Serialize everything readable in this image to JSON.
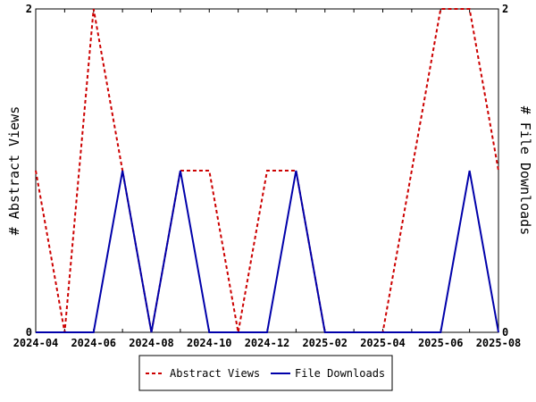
{
  "chart_data": {
    "type": "line",
    "x": [
      "2024-04",
      "2024-05",
      "2024-06",
      "2024-07",
      "2024-08",
      "2024-09",
      "2024-10",
      "2024-11",
      "2024-12",
      "2025-01",
      "2025-02",
      "2025-03",
      "2025-04",
      "2025-05",
      "2025-06",
      "2025-07",
      "2025-08"
    ],
    "x_tick_labels": [
      "2024-04",
      "2024-06",
      "2024-08",
      "2024-10",
      "2024-12",
      "2025-02",
      "2025-04",
      "2025-06",
      "2025-08"
    ],
    "series": [
      {
        "name": "Abstract Views",
        "axis": "left",
        "color": "#cc0000",
        "style": "dashed",
        "values": [
          1,
          0,
          2,
          1,
          0,
          1,
          1,
          0,
          1,
          1,
          0,
          0,
          0,
          1,
          2,
          2,
          1
        ]
      },
      {
        "name": "File Downloads",
        "axis": "right",
        "color": "#0000aa",
        "style": "solid",
        "values": [
          0,
          0,
          0,
          1,
          0,
          1,
          0,
          0,
          0,
          1,
          0,
          0,
          0,
          0,
          0,
          1,
          0
        ]
      }
    ],
    "ylabel_left": "# Abstract Views",
    "ylabel_right": "# File Downloads",
    "ylim_left": [
      0,
      2
    ],
    "ylim_right": [
      0,
      2
    ],
    "y_ticks_left": [
      "0",
      "2"
    ],
    "y_ticks_right": [
      "0",
      "2"
    ],
    "grid": false,
    "legend_position": "bottom-center"
  }
}
